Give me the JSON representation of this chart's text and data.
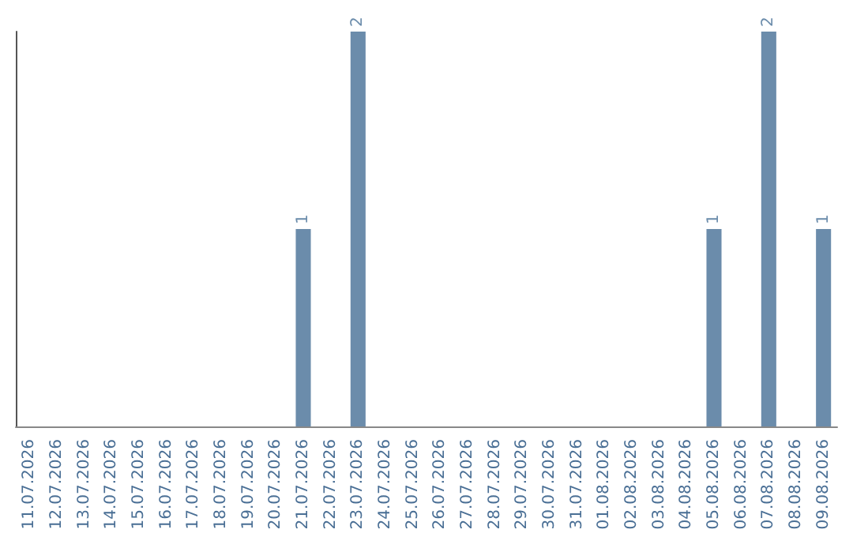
{
  "chart_data": {
    "type": "bar",
    "categories": [
      "11.07.2026",
      "12.07.2026",
      "13.07.2026",
      "14.07.2026",
      "15.07.2026",
      "16.07.2026",
      "17.07.2026",
      "18.07.2026",
      "19.07.2026",
      "20.07.2026",
      "21.07.2026",
      "22.07.2026",
      "23.07.2026",
      "24.07.2026",
      "25.07.2026",
      "26.07.2026",
      "27.07.2026",
      "28.07.2026",
      "29.07.2026",
      "30.07.2026",
      "31.07.2026",
      "01.08.2026",
      "02.08.2026",
      "03.08.2026",
      "04.08.2026",
      "05.08.2026",
      "06.08.2026",
      "07.08.2026",
      "08.08.2026",
      "09.08.2026"
    ],
    "values": [
      0,
      0,
      0,
      0,
      0,
      0,
      0,
      0,
      0,
      0,
      1,
      0,
      2,
      0,
      0,
      0,
      0,
      0,
      0,
      0,
      0,
      0,
      0,
      0,
      0,
      1,
      0,
      2,
      0,
      1
    ],
    "value_labels": [
      null,
      null,
      null,
      null,
      null,
      null,
      null,
      null,
      null,
      null,
      "1",
      null,
      "2",
      null,
      null,
      null,
      null,
      null,
      null,
      null,
      null,
      null,
      null,
      null,
      null,
      "1",
      null,
      "2",
      null,
      "1"
    ],
    "color": "#6b8cab",
    "tick_labels": "x",
    "grid": false
  }
}
